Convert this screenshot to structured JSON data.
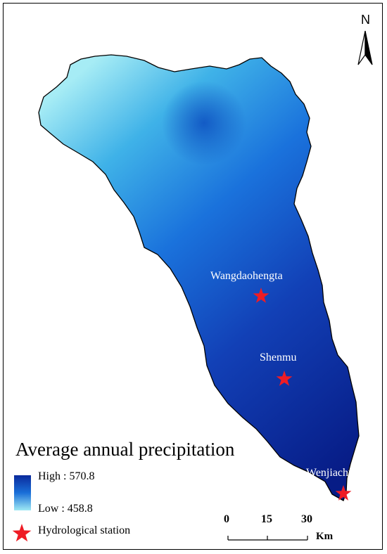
{
  "legend": {
    "title": "Average annual precipitation",
    "high_label": "High : 570.8",
    "low_label": "Low : 458.8",
    "station_label": "Hydrological station",
    "gradient_colors": [
      "#0a2a9c",
      "#1a6fd8",
      "#9fe9f4"
    ],
    "station_color": "#ee1c25"
  },
  "stations": [
    {
      "name": "Wangdaohengta"
    },
    {
      "name": "Shenmu"
    },
    {
      "name": "Wenjiachuan"
    }
  ],
  "scale_bar": {
    "ticks": [
      "0",
      "15",
      "30"
    ],
    "unit": "Km"
  },
  "north_arrow": {
    "label": "N",
    "icon": "north-arrow-icon"
  }
}
